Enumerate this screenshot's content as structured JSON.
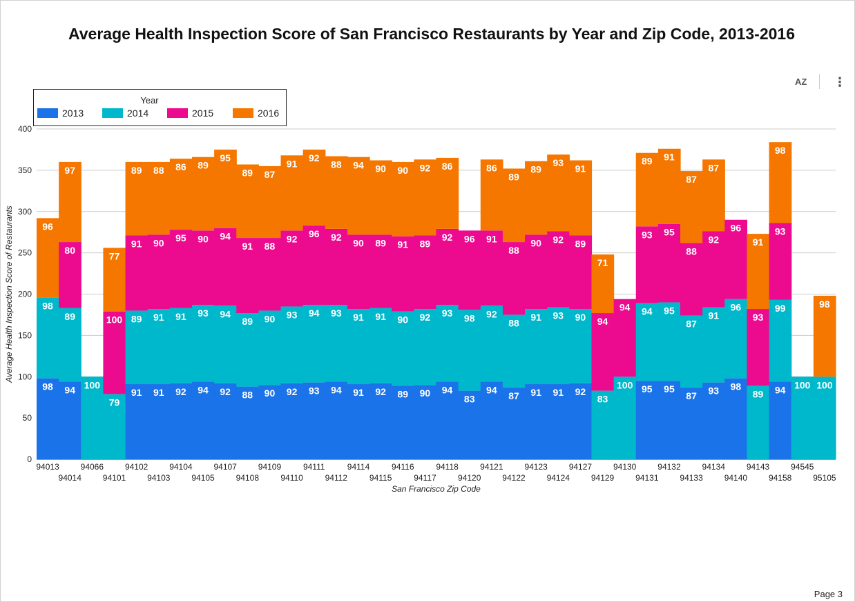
{
  "page": {
    "number_label": "Page 3"
  },
  "toolbar": {
    "sort_icon": "sort-az-icon",
    "sort_label": "AZ",
    "more_icon": "more-vert-icon",
    "more_glyph": "⋮"
  },
  "chart_data": {
    "type": "bar",
    "stacked": true,
    "title": "Average Health Inspection Score of San Francisco Restaurants by Year and Zip Code, 2013-2016",
    "xlabel": "San Francisco Zip Code",
    "ylabel": "Average Health Inspection Score of Restaurants",
    "ylim": [
      0,
      400
    ],
    "yticks": [
      0,
      50,
      100,
      150,
      200,
      250,
      300,
      350,
      400
    ],
    "grid": true,
    "legend": {
      "title": "Year",
      "placement": "top-left"
    },
    "categories": [
      "94013",
      "94014",
      "94066",
      "94101",
      "94102",
      "94103",
      "94104",
      "94105",
      "94107",
      "94108",
      "94109",
      "94110",
      "94111",
      "94112",
      "94114",
      "94115",
      "94116",
      "94117",
      "94118",
      "94120",
      "94121",
      "94122",
      "94123",
      "94124",
      "94127",
      "94129",
      "94130",
      "94131",
      "94132",
      "94133",
      "94134",
      "94140",
      "94143",
      "94158",
      "94545",
      "95105"
    ],
    "series": [
      {
        "name": "2013",
        "color": "#1a73e8",
        "values": [
          98,
          94,
          null,
          null,
          91,
          91,
          92,
          94,
          92,
          88,
          90,
          92,
          93,
          94,
          91,
          92,
          89,
          90,
          94,
          83,
          94,
          87,
          91,
          91,
          92,
          null,
          null,
          95,
          95,
          87,
          93,
          98,
          null,
          94,
          null,
          null
        ]
      },
      {
        "name": "2014",
        "color": "#00b8cc",
        "values": [
          98,
          89,
          100,
          79,
          89,
          91,
          91,
          93,
          94,
          89,
          90,
          93,
          94,
          93,
          91,
          91,
          90,
          92,
          93,
          98,
          92,
          88,
          91,
          93,
          90,
          83,
          100,
          94,
          95,
          87,
          91,
          96,
          89,
          99,
          100,
          100
        ]
      },
      {
        "name": "2015",
        "color": "#ec0a8f",
        "values": [
          null,
          80,
          null,
          100,
          91,
          90,
          95,
          90,
          94,
          91,
          88,
          92,
          96,
          92,
          90,
          89,
          91,
          89,
          92,
          96,
          91,
          88,
          90,
          92,
          89,
          94,
          94,
          93,
          95,
          88,
          92,
          96,
          93,
          93,
          null,
          null
        ]
      },
      {
        "name": "2016",
        "color": "#f57700",
        "values": [
          96,
          97,
          null,
          77,
          89,
          88,
          86,
          89,
          95,
          89,
          87,
          91,
          92,
          88,
          94,
          90,
          90,
          92,
          86,
          null,
          86,
          89,
          89,
          93,
          91,
          71,
          null,
          89,
          91,
          87,
          87,
          null,
          91,
          98,
          null,
          98
        ]
      }
    ]
  }
}
